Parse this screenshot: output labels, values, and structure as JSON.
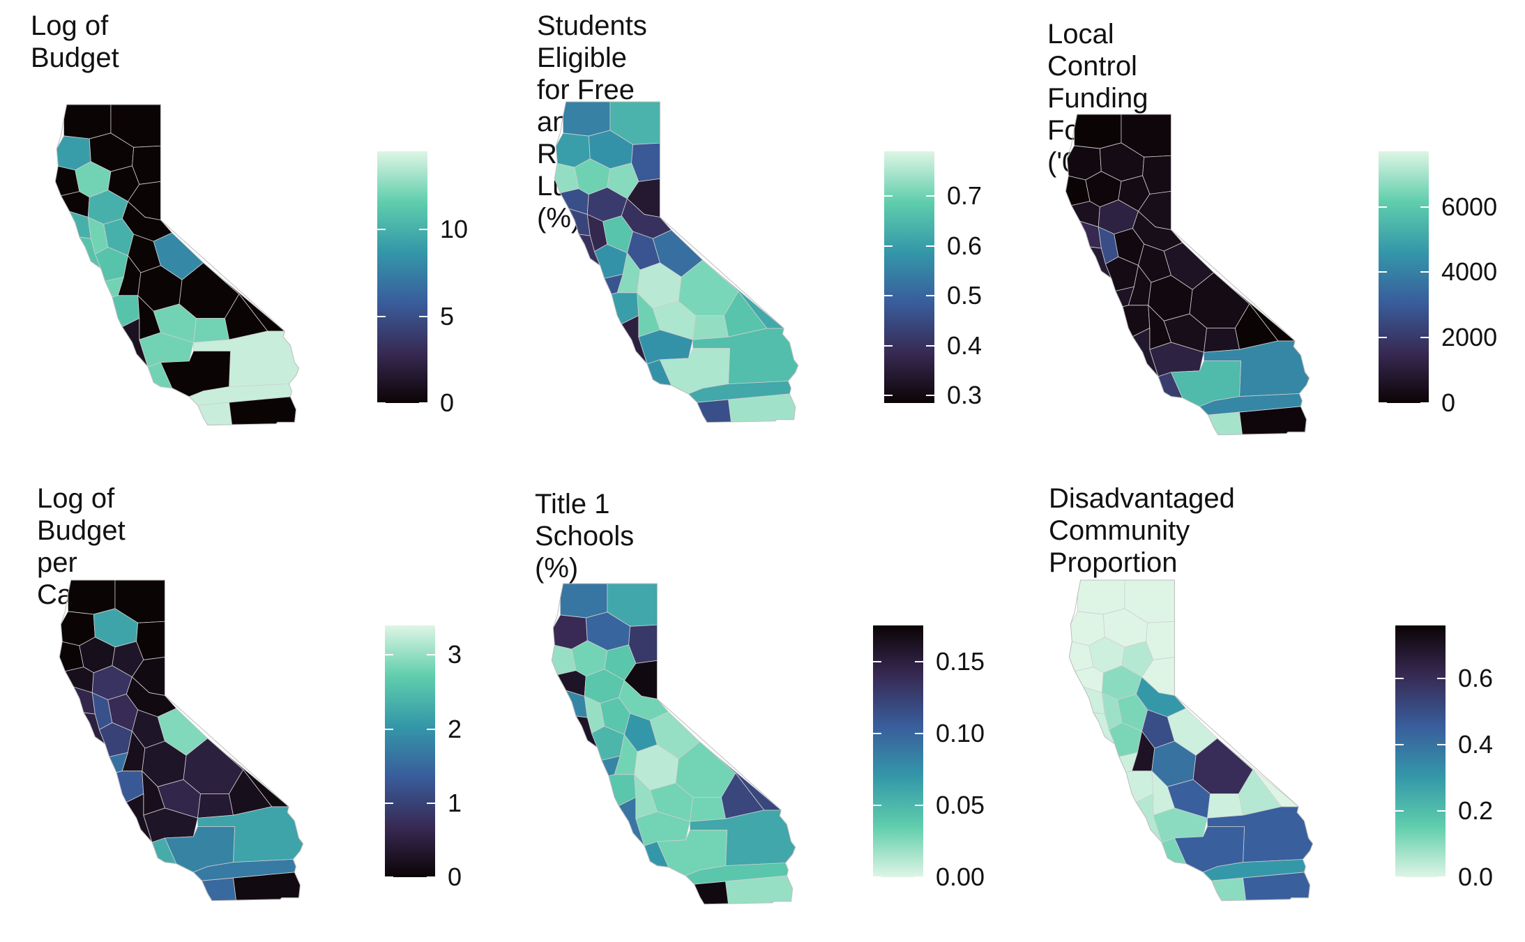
{
  "panels": [
    {
      "title": "Log of Budget",
      "legend": {
        "ticks": [
          "0",
          "5",
          "10"
        ],
        "tick_values": [
          0,
          5,
          10
        ],
        "range": [
          0,
          14.5
        ],
        "palette": [
          "#0b0405",
          "#382a54",
          "#395d9c",
          "#3497a9",
          "#60ceac",
          "#def5e5"
        ]
      }
    },
    {
      "title": "Students Eligible for Free\nand Reduced Lunch (%)",
      "legend": {
        "ticks": [
          "0.3",
          "0.4",
          "0.5",
          "0.6",
          "0.7"
        ],
        "tick_values": [
          0.3,
          0.4,
          0.5,
          0.6,
          0.7
        ],
        "range": [
          0.285,
          0.79
        ],
        "palette": [
          "#0b0405",
          "#382a54",
          "#395d9c",
          "#3497a9",
          "#60ceac",
          "#def5e5"
        ]
      }
    },
    {
      "title": "Local Control Funding Formula\n('00,000)",
      "legend": {
        "ticks": [
          "0",
          "2000",
          "4000",
          "6000"
        ],
        "tick_values": [
          0,
          2000,
          4000,
          6000
        ],
        "range": [
          0,
          7700
        ],
        "palette": [
          "#0b0405",
          "#382a54",
          "#395d9c",
          "#3497a9",
          "#60ceac",
          "#def5e5"
        ]
      }
    },
    {
      "title": "Log of Budget per Capita",
      "legend": {
        "ticks": [
          "0",
          "1",
          "2",
          "3"
        ],
        "tick_values": [
          0,
          1,
          2,
          3
        ],
        "range": [
          0,
          3.4
        ],
        "palette": [
          "#0b0405",
          "#382a54",
          "#395d9c",
          "#3497a9",
          "#60ceac",
          "#def5e5"
        ]
      }
    },
    {
      "title": "Title 1 Schools (%)",
      "legend": {
        "ticks": [
          "0.00",
          "0.05",
          "0.10",
          "0.15"
        ],
        "tick_values": [
          0,
          0.05,
          0.1,
          0.15
        ],
        "range": [
          0,
          0.175
        ],
        "palette": [
          "#def5e5",
          "#60ceac",
          "#3497a9",
          "#395d9c",
          "#382a54",
          "#0b0405"
        ]
      }
    },
    {
      "title": "Disadvantaged Community\nProportion",
      "legend": {
        "ticks": [
          "0.0",
          "0.2",
          "0.4",
          "0.6"
        ],
        "tick_values": [
          0,
          0.2,
          0.4,
          0.6
        ],
        "range": [
          0,
          0.76
        ],
        "palette": [
          "#def5e5",
          "#60ceac",
          "#3497a9",
          "#395d9c",
          "#382a54",
          "#0b0405"
        ]
      }
    }
  ]
}
